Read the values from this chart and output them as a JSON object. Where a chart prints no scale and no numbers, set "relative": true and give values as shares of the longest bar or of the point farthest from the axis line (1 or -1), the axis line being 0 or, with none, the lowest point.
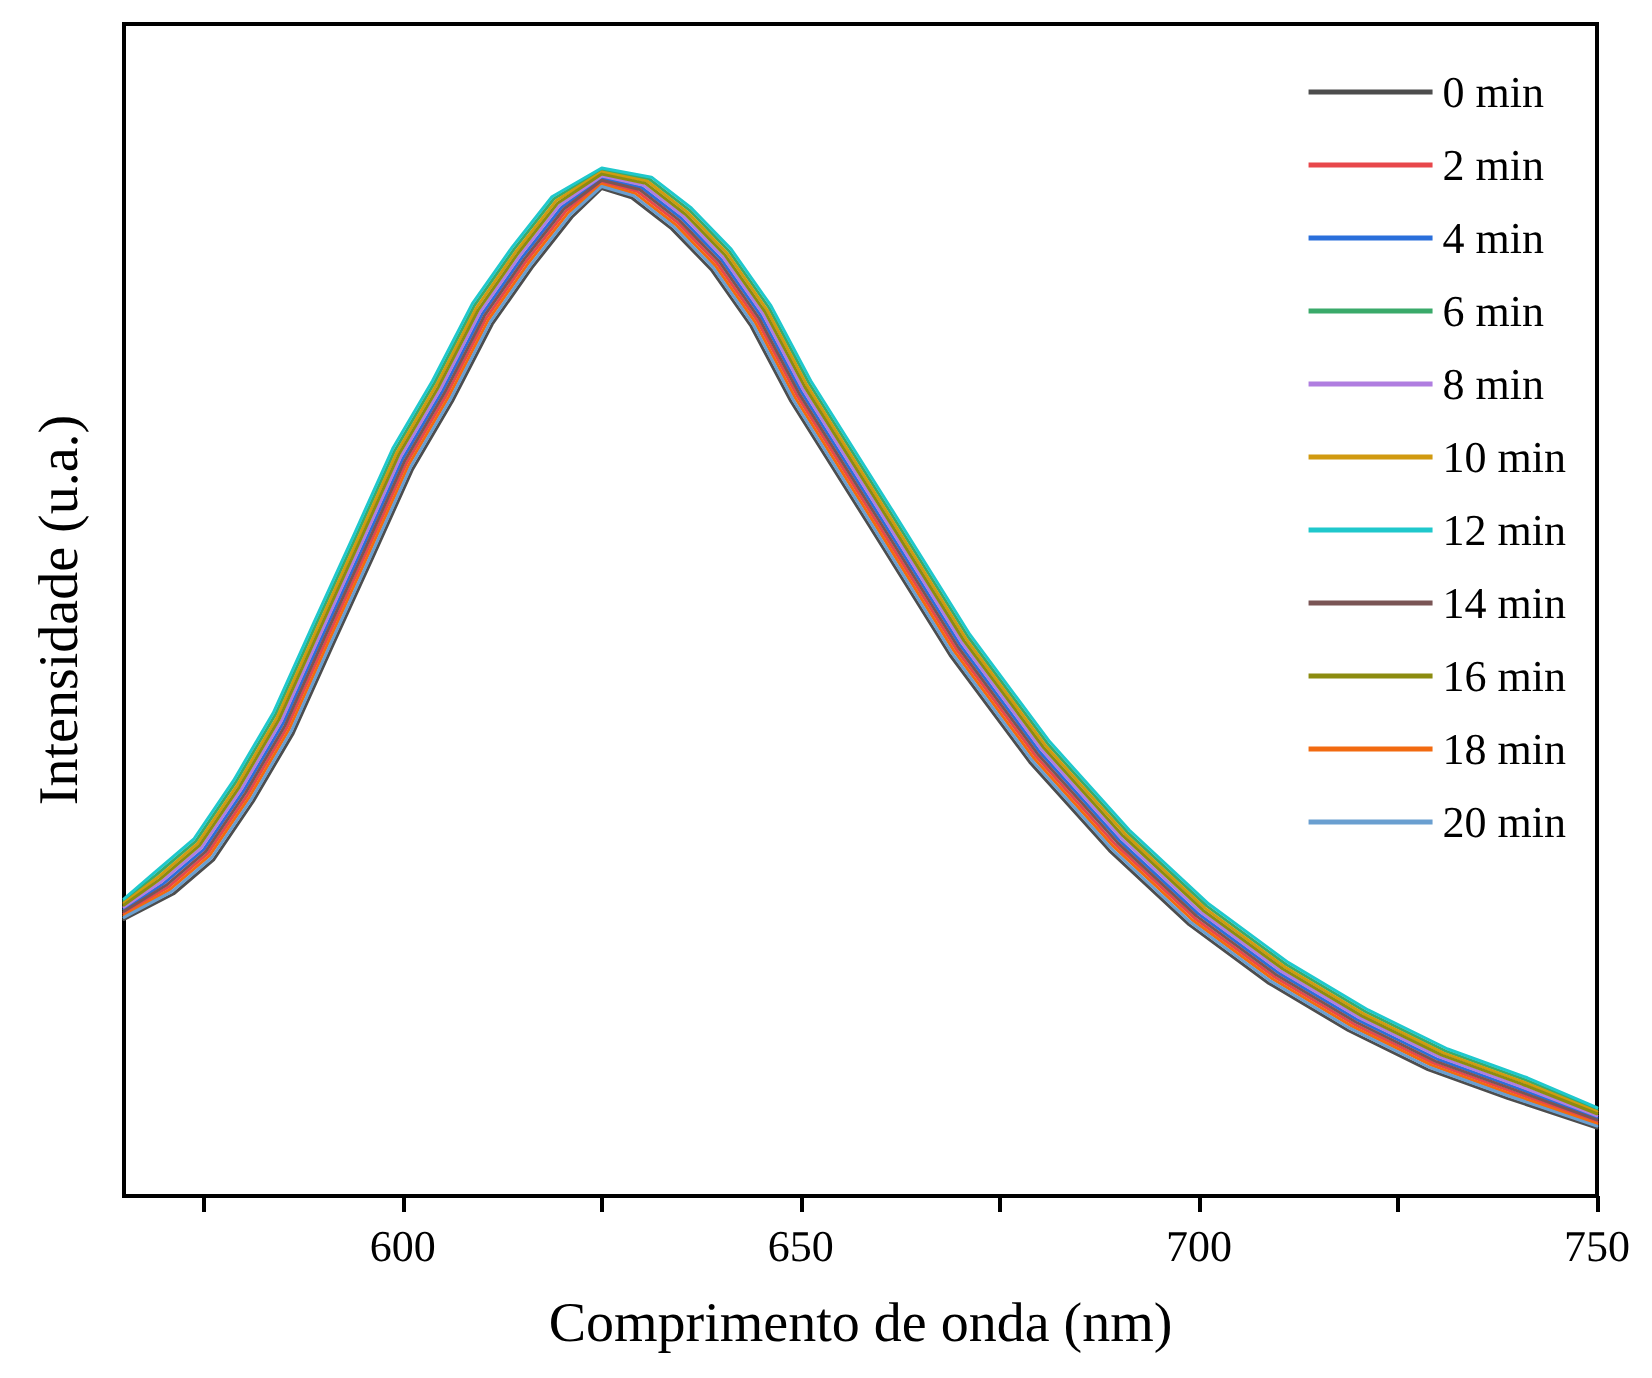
{
  "chart_data": {
    "type": "line",
    "relative": true,
    "xlabel": "Comprimento de onda (nm)",
    "ylabel": "Intensidade (u.a.)",
    "xlim": [
      565,
      750
    ],
    "xticks": [
      {
        "value": 575,
        "label": null
      },
      600,
      {
        "value": 625,
        "label": null
      },
      650,
      {
        "value": 675,
        "label": null
      },
      700,
      {
        "value": 725,
        "label": null
      },
      750
    ],
    "legend": "top right",
    "grid": false,
    "marker": "none",
    "line_style": "solid",
    "series": [
      {
        "name": "0 min",
        "color": "#4d4d4d",
        "x": [
          565,
          571.25,
          576.25,
          581.25,
          586.25,
          591.25,
          596.25,
          601.25,
          606.25,
          611.25,
          616.25,
          621.25,
          625,
          628.75,
          633.75,
          638.75,
          643.75,
          648.75,
          658.75,
          668.75,
          678.75,
          688.75,
          698.75,
          708.75,
          718.75,
          728.75,
          738.75,
          750
        ],
        "values": [
          0.269,
          0.294,
          0.327,
          0.384,
          0.45,
          0.536,
          0.621,
          0.707,
          0.773,
          0.848,
          0.903,
          0.952,
          0.98,
          0.971,
          0.941,
          0.901,
          0.846,
          0.773,
          0.65,
          0.526,
          0.422,
          0.336,
          0.264,
          0.207,
          0.161,
          0.123,
          0.095,
          0.066
        ]
      },
      {
        "name": "2 min",
        "color": "#e8474b",
        "x": [
          565,
          570.5,
          575.5,
          580.5,
          585.5,
          590.5,
          595.5,
          600.5,
          605.5,
          610.5,
          615.5,
          620.5,
          625,
          629.5,
          634.5,
          639.5,
          644.5,
          649.5,
          659.5,
          669.5,
          679.5,
          689.5,
          699.5,
          709.5,
          719.5,
          729.5,
          739.5,
          750
        ],
        "values": [
          0.275,
          0.3,
          0.333,
          0.39,
          0.456,
          0.542,
          0.627,
          0.713,
          0.779,
          0.854,
          0.909,
          0.958,
          0.986,
          0.977,
          0.947,
          0.907,
          0.852,
          0.779,
          0.656,
          0.532,
          0.428,
          0.342,
          0.27,
          0.213,
          0.167,
          0.129,
          0.101,
          0.072
        ]
      },
      {
        "name": "4 min",
        "color": "#2a6fdb",
        "x": [
          565,
          570,
          575,
          580,
          585,
          590,
          595,
          600,
          605,
          610,
          615,
          620,
          625,
          630,
          635,
          640,
          645,
          650,
          660,
          670,
          680,
          690,
          700,
          710,
          720,
          730,
          740,
          750
        ],
        "values": [
          0.279,
          0.304,
          0.337,
          0.394,
          0.46,
          0.546,
          0.631,
          0.717,
          0.783,
          0.858,
          0.913,
          0.962,
          0.99,
          0.981,
          0.951,
          0.911,
          0.856,
          0.783,
          0.66,
          0.536,
          0.432,
          0.346,
          0.274,
          0.217,
          0.171,
          0.133,
          0.105,
          0.076
        ]
      },
      {
        "name": "6 min",
        "color": "#3aaa6a",
        "x": [
          565,
          569,
          574,
          579,
          584,
          589,
          594,
          599,
          604,
          609,
          614,
          619,
          625,
          631,
          636,
          641,
          646,
          651,
          661,
          671,
          681,
          691,
          701,
          711,
          721,
          731,
          741,
          750
        ],
        "values": [
          0.287,
          0.312,
          0.345,
          0.402,
          0.468,
          0.554,
          0.639,
          0.725,
          0.791,
          0.866,
          0.921,
          0.97,
          0.998,
          0.989,
          0.959,
          0.919,
          0.864,
          0.791,
          0.668,
          0.544,
          0.44,
          0.354,
          0.282,
          0.225,
          0.179,
          0.141,
          0.113,
          0.084
        ]
      },
      {
        "name": "8 min",
        "color": "#b07ee0",
        "x": [
          565,
          569.75,
          574.75,
          579.75,
          584.75,
          589.75,
          594.75,
          599.75,
          604.75,
          609.75,
          614.75,
          619.75,
          625,
          630.25,
          635.25,
          640.25,
          645.25,
          650.25,
          660.25,
          670.25,
          680.25,
          690.25,
          700.25,
          710.25,
          720.25,
          730.25,
          740.25,
          750
        ],
        "values": [
          0.281,
          0.306,
          0.339,
          0.396,
          0.462,
          0.548,
          0.633,
          0.719,
          0.785,
          0.86,
          0.915,
          0.964,
          0.992,
          0.983,
          0.953,
          0.913,
          0.858,
          0.785,
          0.662,
          0.538,
          0.434,
          0.348,
          0.276,
          0.219,
          0.173,
          0.135,
          0.107,
          0.078
        ]
      },
      {
        "name": "10 min",
        "color": "#d19a10",
        "x": [
          565,
          569.25,
          574.25,
          579.25,
          584.25,
          589.25,
          594.25,
          599.25,
          604.25,
          609.25,
          614.25,
          619.25,
          625,
          630.75,
          635.75,
          640.75,
          645.75,
          650.75,
          660.75,
          670.75,
          680.75,
          690.75,
          700.75,
          710.75,
          720.75,
          730.75,
          740.75,
          750
        ],
        "values": [
          0.285,
          0.31,
          0.343,
          0.4,
          0.466,
          0.552,
          0.637,
          0.723,
          0.789,
          0.864,
          0.919,
          0.968,
          0.996,
          0.987,
          0.957,
          0.917,
          0.862,
          0.789,
          0.666,
          0.542,
          0.438,
          0.352,
          0.28,
          0.223,
          0.177,
          0.139,
          0.111,
          0.082
        ]
      },
      {
        "name": "12 min",
        "color": "#1fc8cc",
        "x": [
          565,
          568.75,
          573.75,
          578.75,
          583.75,
          588.75,
          593.75,
          598.75,
          603.75,
          608.75,
          613.75,
          618.75,
          625,
          631.25,
          636.25,
          641.25,
          646.25,
          651.25,
          661.25,
          671.25,
          681.25,
          691.25,
          701.25,
          711.25,
          721.25,
          731.25,
          741.25,
          750
        ],
        "values": [
          0.289,
          0.314,
          0.347,
          0.404,
          0.47,
          0.556,
          0.641,
          0.727,
          0.793,
          0.868,
          0.923,
          0.972,
          1.0,
          0.991,
          0.961,
          0.921,
          0.866,
          0.793,
          0.67,
          0.546,
          0.442,
          0.356,
          0.284,
          0.227,
          0.181,
          0.143,
          0.115,
          0.086
        ]
      },
      {
        "name": "14 min",
        "color": "#7a5555",
        "x": [
          565,
          570.25,
          575.25,
          580.25,
          585.25,
          590.25,
          595.25,
          600.25,
          605.25,
          610.25,
          615.25,
          620.25,
          625,
          629.75,
          634.75,
          639.75,
          644.75,
          649.75,
          659.75,
          669.75,
          679.75,
          689.75,
          699.75,
          709.75,
          719.75,
          729.75,
          739.75,
          750
        ],
        "values": [
          0.277,
          0.302,
          0.335,
          0.392,
          0.458,
          0.544,
          0.629,
          0.715,
          0.781,
          0.856,
          0.911,
          0.96,
          0.988,
          0.979,
          0.949,
          0.909,
          0.854,
          0.781,
          0.658,
          0.534,
          0.43,
          0.344,
          0.272,
          0.215,
          0.169,
          0.131,
          0.103,
          0.074
        ]
      },
      {
        "name": "16 min",
        "color": "#8c8c10",
        "x": [
          565,
          569.5,
          574.5,
          579.5,
          584.5,
          589.5,
          594.5,
          599.5,
          604.5,
          609.5,
          614.5,
          619.5,
          625,
          630.5,
          635.5,
          640.5,
          645.5,
          650.5,
          660.5,
          670.5,
          680.5,
          690.5,
          700.5,
          710.5,
          720.5,
          730.5,
          740.5,
          750
        ],
        "values": [
          0.283,
          0.308,
          0.341,
          0.398,
          0.464,
          0.55,
          0.635,
          0.721,
          0.787,
          0.862,
          0.917,
          0.966,
          0.994,
          0.985,
          0.955,
          0.915,
          0.86,
          0.787,
          0.664,
          0.54,
          0.436,
          0.35,
          0.278,
          0.221,
          0.175,
          0.137,
          0.109,
          0.08
        ]
      },
      {
        "name": "18 min",
        "color": "#f26a10",
        "x": [
          565,
          570.75,
          575.75,
          580.75,
          585.75,
          590.75,
          595.75,
          600.75,
          605.75,
          610.75,
          615.75,
          620.75,
          625,
          629.25,
          634.25,
          639.25,
          644.25,
          649.25,
          659.25,
          669.25,
          679.25,
          689.25,
          699.25,
          709.25,
          719.25,
          729.25,
          739.25,
          750
        ],
        "values": [
          0.273,
          0.298,
          0.331,
          0.388,
          0.454,
          0.54,
          0.625,
          0.711,
          0.777,
          0.852,
          0.907,
          0.956,
          0.984,
          0.975,
          0.945,
          0.905,
          0.85,
          0.777,
          0.654,
          0.53,
          0.426,
          0.34,
          0.268,
          0.211,
          0.165,
          0.127,
          0.099,
          0.07
        ]
      },
      {
        "name": "20 min",
        "color": "#6a9fd0",
        "x": [
          565,
          571,
          576,
          581,
          586,
          591,
          596,
          601,
          606,
          611,
          616,
          621,
          625,
          629,
          634,
          639,
          644,
          649,
          659,
          669,
          679,
          689,
          699,
          709,
          719,
          729,
          739,
          750
        ],
        "values": [
          0.271,
          0.296,
          0.329,
          0.386,
          0.452,
          0.538,
          0.623,
          0.709,
          0.775,
          0.85,
          0.905,
          0.954,
          0.982,
          0.973,
          0.943,
          0.903,
          0.848,
          0.775,
          0.652,
          0.528,
          0.424,
          0.338,
          0.266,
          0.209,
          0.163,
          0.125,
          0.097,
          0.068
        ]
      }
    ]
  }
}
